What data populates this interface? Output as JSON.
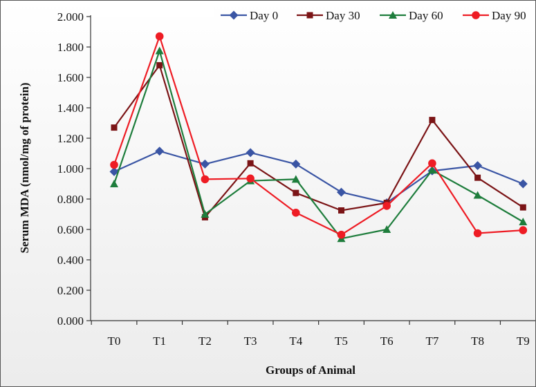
{
  "chart_data": {
    "type": "line",
    "title": "",
    "xlabel": "Groups of Animal",
    "ylabel": "Serum MDA (nmol/mg of protein)",
    "ylim": [
      0,
      2
    ],
    "ytick_values": [
      0,
      0.2,
      0.4,
      0.6,
      0.8,
      1.0,
      1.2,
      1.4,
      1.6,
      1.8,
      2.0
    ],
    "ytick_labels": [
      "0.000",
      "0.200",
      "0.400",
      "0.600",
      "0.800",
      "1.000",
      "1.200",
      "1.400",
      "1.600",
      "1.800",
      "2.000"
    ],
    "categories": [
      "T0",
      "T1",
      "T2",
      "T3",
      "T4",
      "T5",
      "T6",
      "T7",
      "T8",
      "T9"
    ],
    "grid": false,
    "legend_position": "top",
    "series": [
      {
        "name": "Day 0",
        "color": "#3a55a4",
        "marker": "diamond",
        "values": [
          0.98,
          1.115,
          1.03,
          1.105,
          1.03,
          0.845,
          0.775,
          0.985,
          1.02,
          0.9
        ]
      },
      {
        "name": "Day 30",
        "color": "#7b1416",
        "marker": "square",
        "values": [
          1.27,
          1.68,
          0.68,
          1.035,
          0.84,
          0.725,
          0.775,
          1.32,
          0.94,
          0.745
        ]
      },
      {
        "name": "Day 60",
        "color": "#1e7d3c",
        "marker": "triangle",
        "values": [
          0.9,
          1.775,
          0.7,
          0.92,
          0.93,
          0.54,
          0.6,
          0.99,
          0.825,
          0.65
        ]
      },
      {
        "name": "Day 90",
        "color": "#ee1c24",
        "marker": "circle",
        "values": [
          1.025,
          1.87,
          0.93,
          0.935,
          0.71,
          0.565,
          0.755,
          1.035,
          0.575,
          0.595
        ]
      }
    ]
  }
}
